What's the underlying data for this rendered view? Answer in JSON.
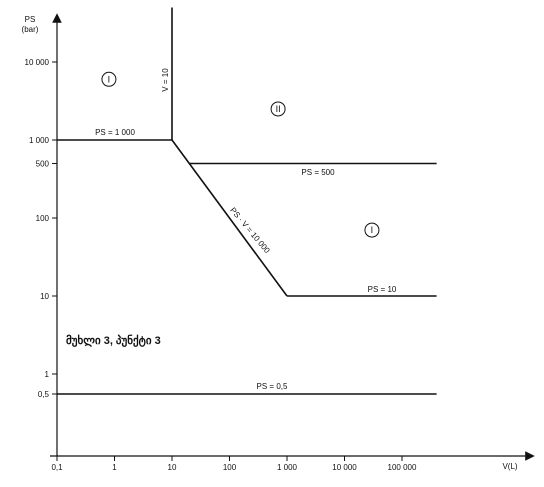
{
  "chart_data": {
    "type": "line",
    "title": "",
    "y_axis": {
      "label_line1": "PS",
      "label_line2": "(bar)",
      "scale": "log",
      "ticks": [
        {
          "value": 0.5,
          "label": "0,5"
        },
        {
          "value": 1,
          "label": "1"
        },
        {
          "value": 10,
          "label": "10"
        },
        {
          "value": 100,
          "label": "100"
        },
        {
          "value": 500,
          "label": "500"
        },
        {
          "value": 1000,
          "label": "1 000"
        },
        {
          "value": 10000,
          "label": "10 000"
        }
      ]
    },
    "x_axis": {
      "label": "V(L)",
      "scale": "log",
      "ticks": [
        {
          "value": 0.1,
          "label": "0,1"
        },
        {
          "value": 1,
          "label": "1"
        },
        {
          "value": 10,
          "label": "10"
        },
        {
          "value": 100,
          "label": "100"
        },
        {
          "value": 1000,
          "label": "1 000"
        },
        {
          "value": 10000,
          "label": "10 000"
        },
        {
          "value": 100000,
          "label": "100 000"
        }
      ]
    },
    "series": [
      {
        "label": "PS = 1 000",
        "points": [
          [
            0.1,
            1000
          ],
          [
            10,
            1000
          ]
        ]
      },
      {
        "label": "V = 10",
        "points": [
          [
            10,
            1000
          ],
          [
            10,
            50000
          ]
        ]
      },
      {
        "label": "PS · V = 10 000",
        "points": [
          [
            10,
            1000
          ],
          [
            1000,
            10
          ]
        ]
      },
      {
        "label": "PS = 500",
        "points": [
          [
            20,
            500
          ],
          [
            400000,
            500
          ]
        ]
      },
      {
        "label": "PS = 10",
        "points": [
          [
            1000,
            10
          ],
          [
            400000,
            10
          ]
        ]
      },
      {
        "label": "PS = 0,5",
        "points": [
          [
            0.1,
            0.5
          ],
          [
            400000,
            0.5
          ]
        ]
      }
    ],
    "regions": [
      {
        "label": "I",
        "x": 0.8,
        "y": 6000
      },
      {
        "label": "II",
        "x": 700,
        "y": 2500
      },
      {
        "label": "I",
        "x": 30000,
        "y": 70
      }
    ],
    "note": "მუხლი 3, პუნქტი 3"
  }
}
